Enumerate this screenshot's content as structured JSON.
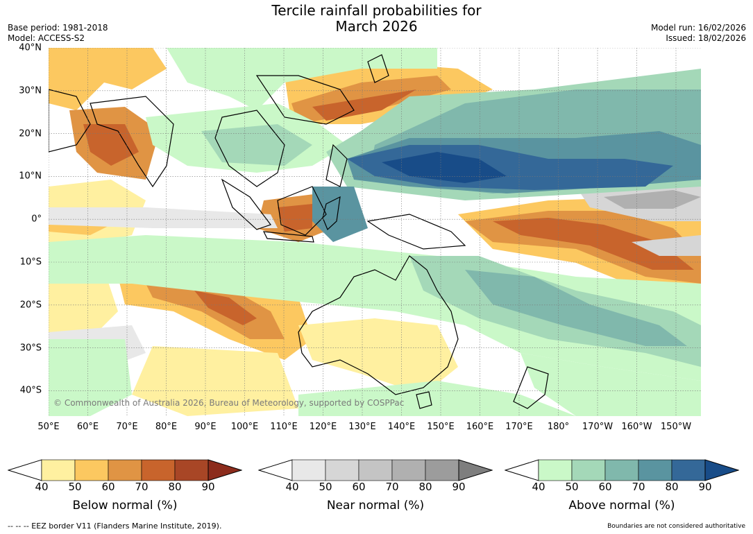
{
  "title_line1": "Tercile rainfall probabilities for",
  "title_line2": "March 2026",
  "base_period": "Base period: 1981-2018",
  "model": "Model: ACCESS-S2",
  "model_run": "Model run: 16/02/2026",
  "issued": "Issued: 18/02/2026",
  "copyright": "© Commonwealth of Australia 2026, Bureau of Meteorology, supported by COSPPac",
  "lat_labels": [
    "40°N",
    "30°N",
    "20°N",
    "10°N",
    "0°",
    "10°S",
    "20°S",
    "30°S",
    "40°S"
  ],
  "lon_labels": [
    "50°E",
    "60°E",
    "70°E",
    "80°E",
    "90°E",
    "100°E",
    "110°E",
    "120°E",
    "130°E",
    "140°E",
    "150°E",
    "160°E",
    "170°E",
    "180°",
    "170°W",
    "160°W",
    "150°W"
  ],
  "colorbars": [
    {
      "label": "Below normal (%)",
      "ticks": [
        "40",
        "50",
        "60",
        "70",
        "80",
        "90"
      ],
      "colors": [
        "#fff0a0",
        "#fcc860",
        "#e09444",
        "#c8642c",
        "#a84626",
        "#8c2c1c"
      ]
    },
    {
      "label": "Near normal (%)",
      "ticks": [
        "40",
        "50",
        "60",
        "70",
        "80",
        "90"
      ],
      "colors": [
        "#e8e8e8",
        "#d6d6d6",
        "#c4c4c4",
        "#b0b0b0",
        "#9c9c9c",
        "#7e7e7e"
      ]
    },
    {
      "label": "Above normal (%)",
      "ticks": [
        "40",
        "50",
        "60",
        "70",
        "80",
        "90"
      ],
      "colors": [
        "#caf8c8",
        "#a4d8b8",
        "#80b8ac",
        "#5a94a0",
        "#346898",
        "#184c88"
      ]
    }
  ],
  "footer_left": "--  --  -- EEZ border V11 (Flanders Marine Institute, 2019).",
  "footer_right": "Boundaries are not considered authoritative"
}
